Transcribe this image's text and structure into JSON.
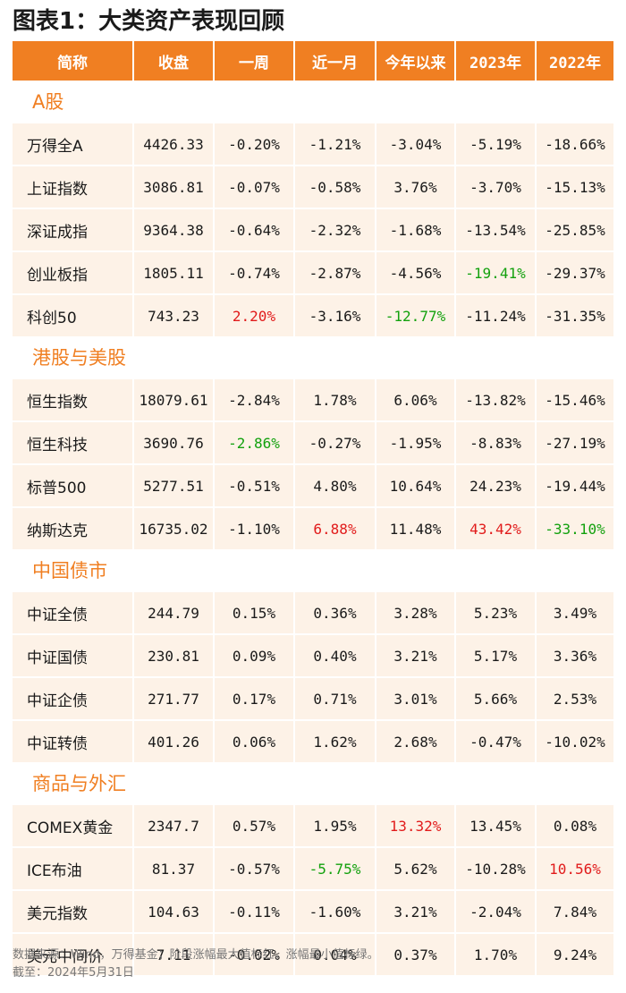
{
  "title": "图表1：大类资产表现回顾",
  "columns": [
    "简称",
    "收盘",
    "一周",
    "近一月",
    "今年以来",
    "2023年",
    "2022年"
  ],
  "sections": [
    {
      "name": "A股",
      "rows": [
        {
          "cells": [
            "万得全A",
            "4426.33",
            "-0.20%",
            "-1.21%",
            "-3.04%",
            "-5.19%",
            "-18.66%"
          ],
          "colors": [
            "",
            "",
            "",
            "",
            "",
            "",
            ""
          ]
        },
        {
          "cells": [
            "上证指数",
            "3086.81",
            "-0.07%",
            "-0.58%",
            "3.76%",
            "-3.70%",
            "-15.13%"
          ],
          "colors": [
            "",
            "",
            "",
            "",
            "",
            "",
            ""
          ]
        },
        {
          "cells": [
            "深证成指",
            "9364.38",
            "-0.64%",
            "-2.32%",
            "-1.68%",
            "-13.54%",
            "-25.85%"
          ],
          "colors": [
            "",
            "",
            "",
            "",
            "",
            "",
            ""
          ]
        },
        {
          "cells": [
            "创业板指",
            "1805.11",
            "-0.74%",
            "-2.87%",
            "-4.56%",
            "-19.41%",
            "-29.37%"
          ],
          "colors": [
            "",
            "",
            "",
            "",
            "",
            "green",
            ""
          ]
        },
        {
          "cells": [
            "科创50",
            "743.23",
            "2.20%",
            "-3.16%",
            "-12.77%",
            "-11.24%",
            "-31.35%"
          ],
          "colors": [
            "",
            "",
            "red",
            "",
            "green",
            "",
            ""
          ]
        }
      ]
    },
    {
      "name": "港股与美股",
      "rows": [
        {
          "cells": [
            "恒生指数",
            "18079.61",
            "-2.84%",
            "1.78%",
            "6.06%",
            "-13.82%",
            "-15.46%"
          ],
          "colors": [
            "",
            "",
            "",
            "",
            "",
            "",
            ""
          ]
        },
        {
          "cells": [
            "恒生科技",
            "3690.76",
            "-2.86%",
            "-0.27%",
            "-1.95%",
            "-8.83%",
            "-27.19%"
          ],
          "colors": [
            "",
            "",
            "green",
            "",
            "",
            "",
            ""
          ]
        },
        {
          "cells": [
            "标普500",
            "5277.51",
            "-0.51%",
            "4.80%",
            "10.64%",
            "24.23%",
            "-19.44%"
          ],
          "colors": [
            "",
            "",
            "",
            "",
            "",
            "",
            ""
          ]
        },
        {
          "cells": [
            "纳斯达克",
            "16735.02",
            "-1.10%",
            "6.88%",
            "11.48%",
            "43.42%",
            "-33.10%"
          ],
          "colors": [
            "",
            "",
            "",
            "red",
            "",
            "red",
            "green"
          ]
        }
      ]
    },
    {
      "name": "中国债市",
      "rows": [
        {
          "cells": [
            "中证全债",
            "244.79",
            "0.15%",
            "0.36%",
            "3.28%",
            "5.23%",
            "3.49%"
          ],
          "colors": [
            "",
            "",
            "",
            "",
            "",
            "",
            ""
          ]
        },
        {
          "cells": [
            "中证国债",
            "230.81",
            "0.09%",
            "0.40%",
            "3.21%",
            "5.17%",
            "3.36%"
          ],
          "colors": [
            "",
            "",
            "",
            "",
            "",
            "",
            ""
          ]
        },
        {
          "cells": [
            "中证企债",
            "271.77",
            "0.17%",
            "0.71%",
            "3.01%",
            "5.66%",
            "2.53%"
          ],
          "colors": [
            "",
            "",
            "",
            "",
            "",
            "",
            ""
          ]
        },
        {
          "cells": [
            "中证转债",
            "401.26",
            "0.06%",
            "1.62%",
            "2.68%",
            "-0.47%",
            "-10.02%"
          ],
          "colors": [
            "",
            "",
            "",
            "",
            "",
            "",
            ""
          ]
        }
      ]
    },
    {
      "name": "商品与外汇",
      "rows": [
        {
          "cells": [
            "COMEX黄金",
            "2347.7",
            "0.57%",
            "1.95%",
            "13.32%",
            "13.45%",
            "0.08%"
          ],
          "colors": [
            "",
            "",
            "",
            "",
            "red",
            "",
            ""
          ]
        },
        {
          "cells": [
            "ICE布油",
            "81.37",
            "-0.57%",
            "-5.75%",
            "5.62%",
            "-10.28%",
            "10.56%"
          ],
          "colors": [
            "",
            "",
            "",
            "green",
            "",
            "",
            "red"
          ]
        },
        {
          "cells": [
            "美元指数",
            "104.63",
            "-0.11%",
            "-1.60%",
            "3.21%",
            "-2.04%",
            "7.84%"
          ],
          "colors": [
            "",
            "",
            "",
            "",
            "",
            "",
            ""
          ]
        },
        {
          "cells": [
            "美元中间价",
            "7.11",
            "-0.02%",
            "0.04%",
            "0.37%",
            "1.70%",
            "9.24%"
          ],
          "colors": [
            "",
            "",
            "",
            "",
            "",
            "",
            ""
          ]
        }
      ]
    }
  ],
  "footnotes": {
    "source": "数据来源：Wind，万得基金；阶段涨幅最大值标红，涨幅最小值标绿。",
    "date": "截至：2024年5月31日"
  },
  "colors": {
    "accent": "#f07f22",
    "cell_bg": "#fdf2e7",
    "up": "#e11b1b",
    "down": "#13a10e"
  }
}
